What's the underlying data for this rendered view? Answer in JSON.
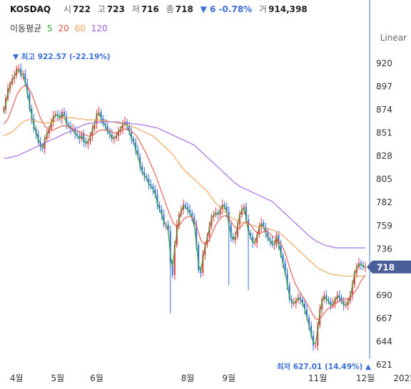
{
  "header": {
    "symbol": "KOSDAQ",
    "open_label": "시",
    "open": "722",
    "high_label": "고",
    "high": "723",
    "low_label": "저",
    "low": "716",
    "close_label": "종",
    "close": "718",
    "change": "▼ 6 -0.78%",
    "volume_label": "거",
    "volume": "914,398"
  },
  "ma_legend": {
    "title": "이동평균",
    "periods": [
      {
        "label": "5",
        "color": "#2aa52a"
      },
      {
        "label": "20",
        "color": "#e8534a"
      },
      {
        "label": "60",
        "color": "#f0a050"
      },
      {
        "label": "120",
        "color": "#a060e0"
      }
    ]
  },
  "scale_mode": "Linear",
  "colors": {
    "up": "#e0383e",
    "down": "#3b6fd8",
    "badge": "#4a5f9a"
  },
  "chart_data": {
    "type": "line",
    "title": "",
    "y_ticks": [
      621,
      644,
      667,
      690,
      713,
      736,
      759,
      782,
      805,
      828,
      851,
      874,
      897,
      920
    ],
    "y_tick_labels": [
      "621",
      "644",
      "667",
      "690",
      "",
      "736",
      "759",
      "782",
      "805",
      "828",
      "851",
      "874",
      "897",
      "920"
    ],
    "ylim": [
      612,
      932
    ],
    "x_ticks": [
      {
        "label": "4월",
        "i": 6
      },
      {
        "label": "5월",
        "i": 25
      },
      {
        "label": "6월",
        "i": 43
      },
      {
        "label": "8월",
        "i": 85
      },
      {
        "label": "9월",
        "i": 104
      },
      {
        "label": "11월",
        "i": 145
      },
      {
        "label": "12월",
        "i": 167
      },
      {
        "label": "2025",
        "i": 185
      }
    ],
    "grid": false,
    "last_price_label": "718",
    "last_price": 718,
    "high_annotation": "최고 922.57 (-22.19%)",
    "high_value": 922.57,
    "high_index": 6,
    "low_annotation": "최저 627.01 (14.49%)",
    "low_value": 627.01,
    "low_index": 169,
    "close_series": [
      875,
      885,
      895,
      900,
      905,
      908,
      915,
      915,
      908,
      910,
      900,
      890,
      875,
      865,
      855,
      850,
      842,
      838,
      835,
      845,
      850,
      855,
      862,
      868,
      870,
      868,
      865,
      872,
      868,
      860,
      858,
      855,
      855,
      850,
      848,
      845,
      850,
      842,
      840,
      842,
      848,
      855,
      860,
      870,
      872,
      865,
      860,
      858,
      852,
      850,
      845,
      846,
      848,
      852,
      855,
      860,
      862,
      858,
      852,
      845,
      842,
      834,
      828,
      818,
      812,
      808,
      806,
      800,
      798,
      795,
      790,
      780,
      775,
      770,
      760,
      760,
      754,
      722,
      710,
      740,
      760,
      770,
      775,
      780,
      778,
      775,
      772,
      768,
      760,
      740,
      715,
      712,
      730,
      740,
      748,
      758,
      768,
      770,
      772,
      770,
      775,
      780,
      778,
      773,
      760,
      748,
      745,
      748,
      760,
      770,
      775,
      778,
      765,
      752,
      748,
      742,
      742,
      750,
      758,
      762,
      758,
      752,
      746,
      744,
      740,
      740,
      750,
      740,
      730,
      722,
      712,
      700,
      686,
      682,
      682,
      685,
      688,
      686,
      682,
      676,
      668,
      660,
      650,
      640,
      640,
      660,
      676,
      686,
      690,
      686,
      684,
      680,
      682,
      686,
      690,
      688,
      684,
      680,
      680,
      684,
      690,
      700,
      712,
      718,
      722,
      720,
      718,
      718
    ],
    "series": [
      {
        "name": "5",
        "color": "#2aa52a",
        "values": [
          870,
          880,
          890,
          898,
          903,
          907,
          912,
          914,
          910,
          909,
          902,
          892,
          879,
          868,
          858,
          852,
          845,
          840,
          836,
          843,
          849,
          855,
          861,
          866,
          869,
          868,
          866,
          870,
          867,
          861,
          858,
          856,
          854,
          851,
          848,
          846,
          848,
          844,
          841,
          843,
          847,
          854,
          860,
          868,
          871,
          866,
          861,
          858,
          853,
          850,
          846,
          846,
          848,
          852,
          855,
          859,
          861,
          858,
          852,
          846,
          842,
          835,
          828,
          819,
          813,
          809,
          806,
          801,
          798,
          795,
          790,
          781,
          775,
          770,
          762,
          760,
          754,
          730,
          718,
          736,
          752,
          765,
          773,
          778,
          777,
          775,
          771,
          767,
          758,
          742,
          720,
          714,
          726,
          738,
          747,
          756,
          766,
          770,
          771,
          770,
          774,
          779,
          778,
          773,
          761,
          749,
          745,
          748,
          759,
          769,
          774,
          777,
          766,
          753,
          748,
          743,
          742,
          749,
          757,
          761,
          758,
          752,
          747,
          744,
          741,
          740,
          748,
          741,
          731,
          722,
          712,
          701,
          688,
          684,
          682,
          684,
          687,
          686,
          682,
          676,
          668,
          660,
          651,
          643,
          642,
          656,
          672,
          684,
          689,
          686,
          684,
          680,
          681,
          685,
          689,
          688,
          684,
          681,
          680,
          683,
          689,
          699,
          710,
          717,
          721,
          720,
          719,
          718
        ]
      },
      {
        "name": "20",
        "color": "#e8534a",
        "values": [
          860,
          862,
          865,
          870,
          876,
          882,
          888,
          892,
          895,
          897,
          898,
          897,
          894,
          890,
          884,
          878,
          872,
          866,
          862,
          858,
          856,
          855,
          854,
          854,
          855,
          856,
          857,
          858,
          858,
          858,
          857,
          856,
          855,
          854,
          853,
          852,
          851,
          850,
          849,
          848,
          848,
          849,
          850,
          852,
          853,
          854,
          854,
          854,
          854,
          853,
          852,
          851,
          851,
          852,
          853,
          854,
          855,
          855,
          854,
          853,
          851,
          849,
          846,
          842,
          838,
          834,
          830,
          825,
          820,
          815,
          810,
          804,
          798,
          792,
          786,
          780,
          774,
          768,
          763,
          760,
          758,
          759,
          762,
          765,
          767,
          768,
          768,
          767,
          764,
          759,
          752,
          745,
          742,
          741,
          742,
          745,
          750,
          755,
          760,
          763,
          766,
          768,
          769,
          768,
          766,
          763,
          760,
          757,
          756,
          757,
          759,
          762,
          763,
          762,
          760,
          757,
          754,
          752,
          751,
          752,
          753,
          754,
          753,
          751,
          749,
          747,
          746,
          744,
          741,
          737,
          732,
          725,
          718,
          711,
          705,
          700,
          696,
          692,
          689,
          686,
          682,
          678,
          674,
          670,
          667,
          666,
          667,
          669,
          672,
          675,
          677,
          678,
          679,
          681,
          683,
          684,
          685,
          686,
          686,
          687,
          688,
          690,
          693,
          696,
          700,
          704,
          707,
          710
        ]
      },
      {
        "name": "60",
        "color": "#f0a050",
        "values": [
          848,
          849,
          850,
          851,
          852,
          854,
          856,
          858,
          860,
          862,
          863,
          864,
          864,
          864,
          863,
          863,
          862,
          862,
          861,
          861,
          861,
          861,
          861,
          862,
          863,
          864,
          865,
          866,
          866,
          866,
          866,
          866,
          866,
          866,
          865,
          865,
          865,
          865,
          864,
          864,
          864,
          864,
          864,
          864,
          864,
          863,
          863,
          863,
          863,
          862,
          862,
          862,
          861,
          861,
          860,
          860,
          859,
          859,
          858,
          858,
          857,
          856,
          855,
          854,
          853,
          852,
          851,
          850,
          849,
          848,
          846,
          844,
          842,
          840,
          838,
          836,
          834,
          832,
          830,
          827,
          824,
          821,
          818,
          815,
          813,
          811,
          809,
          807,
          805,
          803,
          801,
          799,
          797,
          795,
          793,
          790,
          787,
          784,
          781,
          779,
          777,
          775,
          773,
          771,
          769,
          767,
          766,
          765,
          764,
          763,
          762,
          762,
          761,
          760,
          760,
          759,
          759,
          758,
          758,
          757,
          757,
          756,
          756,
          755,
          755,
          754,
          753,
          752,
          751,
          749,
          747,
          745,
          743,
          741,
          739,
          737,
          735,
          733,
          731,
          729,
          727,
          725,
          723,
          721,
          719,
          717,
          716,
          715,
          714,
          713,
          712,
          711,
          711,
          710,
          710,
          710,
          709,
          709,
          709,
          709,
          709,
          709,
          709,
          709,
          709,
          709,
          709,
          709
        ]
      },
      {
        "name": "120",
        "color": "#a060e0",
        "values": [
          826,
          826,
          826,
          827,
          827,
          828,
          828,
          829,
          830,
          831,
          832,
          833,
          834,
          835,
          836,
          837,
          838,
          839,
          840,
          841,
          842,
          843,
          844,
          845,
          846,
          847,
          848,
          849,
          850,
          851,
          852,
          853,
          854,
          855,
          856,
          857,
          858,
          859,
          860,
          860,
          861,
          861,
          861,
          861,
          862,
          862,
          862,
          862,
          862,
          862,
          862,
          862,
          862,
          862,
          861,
          861,
          861,
          861,
          861,
          860,
          860,
          860,
          860,
          859,
          859,
          859,
          858,
          858,
          857,
          857,
          856,
          856,
          855,
          854,
          853,
          852,
          851,
          850,
          849,
          848,
          847,
          846,
          845,
          844,
          843,
          842,
          841,
          840,
          839,
          837,
          835,
          833,
          831,
          829,
          827,
          825,
          823,
          821,
          819,
          817,
          815,
          813,
          811,
          809,
          807,
          805,
          803,
          801,
          800,
          798,
          797,
          796,
          795,
          794,
          793,
          792,
          791,
          790,
          789,
          788,
          787,
          786,
          785,
          784,
          783,
          781,
          779,
          777,
          775,
          773,
          771,
          769,
          767,
          765,
          763,
          761,
          759,
          757,
          755,
          753,
          751,
          749,
          747,
          746,
          744,
          743,
          742,
          741,
          740,
          739,
          739,
          738,
          738,
          737,
          737,
          737,
          737,
          737,
          737,
          737,
          737,
          737,
          737,
          737,
          737,
          737,
          737,
          737
        ]
      }
    ]
  }
}
